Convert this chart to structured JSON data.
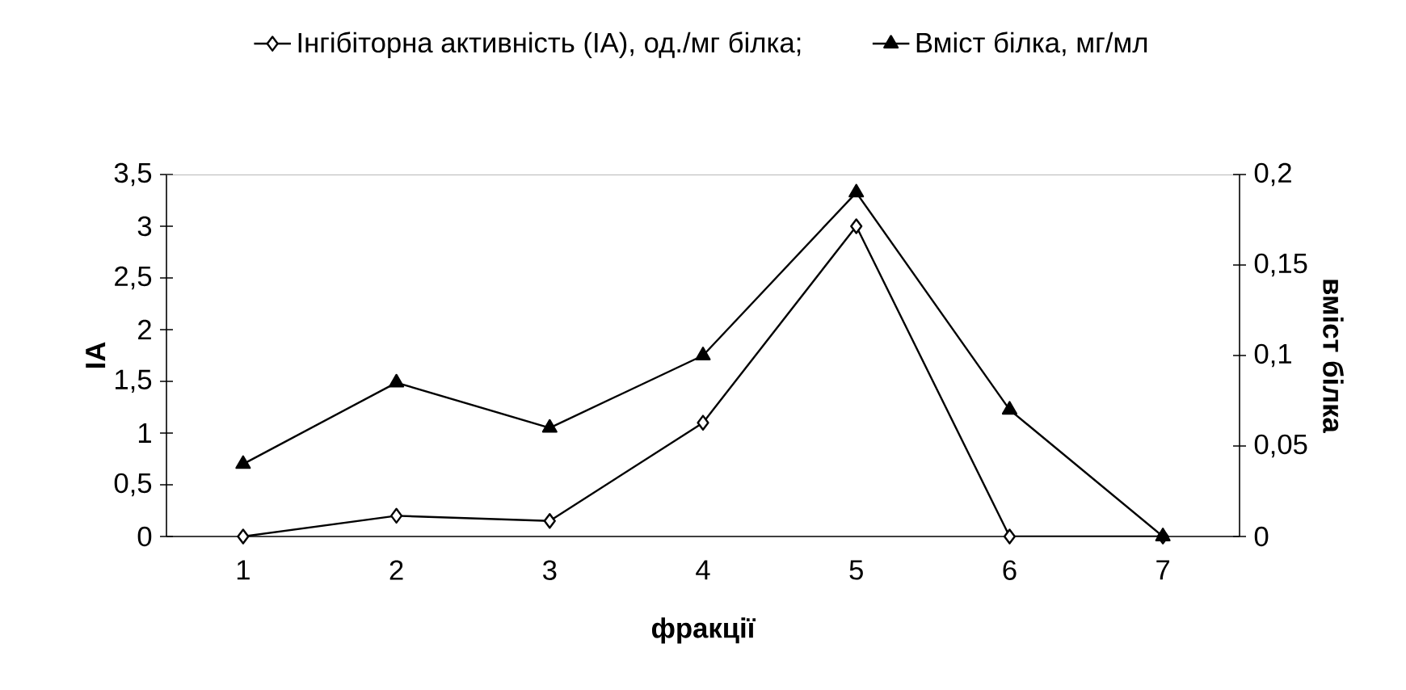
{
  "chart_data": {
    "type": "line",
    "xlabel": "фракції",
    "ylabel": "ІА",
    "y2label": "вміст білка",
    "categories": [
      "1",
      "2",
      "3",
      "4",
      "5",
      "6",
      "7"
    ],
    "series": [
      {
        "name": "Інгібіторна активність (ІА), од./мг білка;",
        "color": "#000000",
        "marker": "diamond",
        "values": [
          0,
          0.2,
          0.15,
          1.1,
          3.0,
          0,
          0
        ]
      },
      {
        "name": "Вміст білка, мг/мл",
        "color": "#000000",
        "marker": "triangle",
        "axis": "y2",
        "values": [
          0.04,
          0.085,
          0.06,
          0.1,
          0.19,
          0.07,
          0
        ]
      }
    ],
    "ylim": [
      0,
      3.5
    ],
    "yticks": [
      0,
      {
        "value": 0.5,
        "label": "0,5"
      },
      1,
      {
        "value": 1.5,
        "label": "1,5"
      },
      2,
      {
        "value": 2.5,
        "label": "2,5"
      },
      3,
      {
        "value": 3.5,
        "label": "3,5"
      }
    ],
    "y2lim": [
      0,
      0.2
    ],
    "y2ticks": [
      0,
      {
        "value": 0.05,
        "label": "0,05"
      },
      {
        "value": 0.1,
        "label": "0,1"
      },
      {
        "value": 0.15,
        "label": "0,15"
      },
      {
        "value": 0.2,
        "label": "0,2"
      }
    ],
    "legend": "top"
  }
}
